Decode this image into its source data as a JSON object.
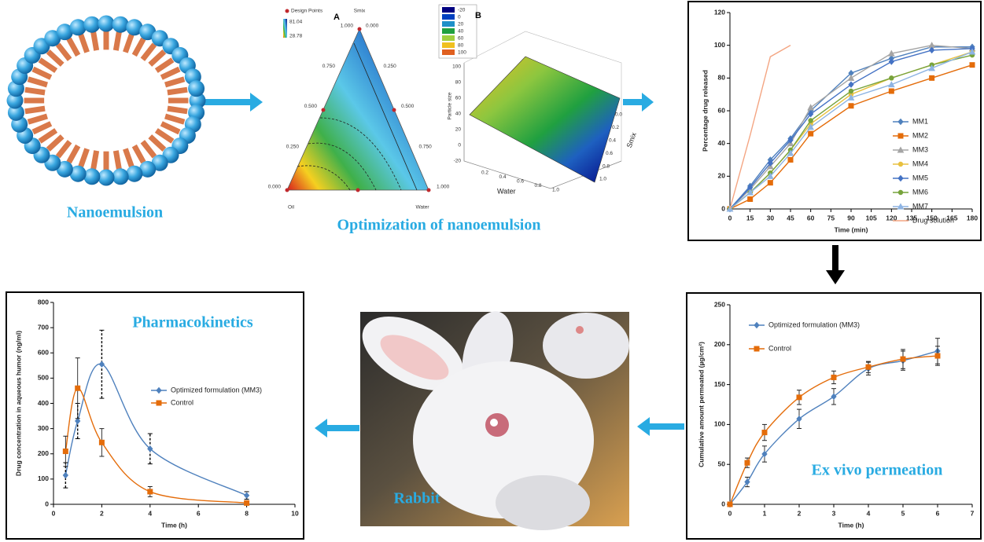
{
  "captions": {
    "nanoemulsion": "Nanoemulsion",
    "optimization": "Optimization of nanoemulsion",
    "rabbit": "Rabbit"
  },
  "figures": {
    "ternary": {
      "panel": "A",
      "legend_title": "Design Points",
      "high": "81.04",
      "low": "28.78",
      "top": "Smix",
      "left": "Oil",
      "right": "Water",
      "ticks": [
        "1.000",
        "0.750",
        "0.500",
        "0.250",
        "0.000"
      ]
    },
    "surface": {
      "panel": "B",
      "x_label": "Water",
      "y_label": "Smix",
      "z_label": "Particle size",
      "x_ticks": [
        "0.2",
        "0.4",
        "0.6",
        "0.8",
        "1.0"
      ],
      "y_ticks": [
        "0.0",
        "0.2",
        "0.4",
        "0.6",
        "0.8",
        "1.0"
      ],
      "z_ticks": [
        "100",
        "80",
        "60",
        "40",
        "20",
        "0",
        "-20"
      ],
      "legend": [
        {
          "label": "-20",
          "color": "#000080"
        },
        {
          "label": "0",
          "color": "#0040c0"
        },
        {
          "label": "20",
          "color": "#1e90c8"
        },
        {
          "label": "40",
          "color": "#20a040"
        },
        {
          "label": "60",
          "color": "#a0d040"
        },
        {
          "label": "80",
          "color": "#f0c020"
        },
        {
          "label": "100",
          "color": "#e06020"
        }
      ]
    }
  },
  "chart_data": [
    {
      "type": "line",
      "smooth": false,
      "xlabel": "Time (min)",
      "ylabel": "Percentage drug released",
      "x": [
        0,
        15,
        30,
        45,
        60,
        90,
        120,
        150,
        180
      ],
      "xlim": [
        0,
        180
      ],
      "xticks": [
        0,
        15,
        30,
        45,
        60,
        75,
        90,
        105,
        120,
        135,
        150,
        165,
        180
      ],
      "ylim": [
        0,
        120
      ],
      "yticks": [
        0,
        20,
        40,
        60,
        80,
        100,
        120
      ],
      "series": [
        {
          "name": "MM1",
          "color": "#4f81bd",
          "marker": "diamond",
          "values": [
            0,
            14,
            30,
            43,
            60,
            83,
            92,
            99,
            99
          ]
        },
        {
          "name": "MM2",
          "color": "#e46c0a",
          "marker": "square",
          "values": [
            0,
            6,
            16,
            30,
            46,
            63,
            72,
            80,
            88
          ]
        },
        {
          "name": "MM3",
          "color": "#a5a5a5",
          "marker": "triangle",
          "values": [
            0,
            12,
            26,
            40,
            62,
            80,
            95,
            100,
            98
          ]
        },
        {
          "name": "MM4",
          "color": "#e8c140",
          "marker": "circle",
          "values": [
            0,
            10,
            22,
            36,
            52,
            70,
            80,
            88,
            96
          ]
        },
        {
          "name": "MM5",
          "color": "#4472c4",
          "marker": "diamond",
          "values": [
            0,
            13,
            28,
            42,
            58,
            76,
            90,
            97,
            98
          ]
        },
        {
          "name": "MM6",
          "color": "#77a33c",
          "marker": "circle",
          "values": [
            0,
            10,
            22,
            36,
            54,
            72,
            80,
            88,
            94
          ]
        },
        {
          "name": "MM7",
          "color": "#8eb4e3",
          "marker": "triangle",
          "values": [
            0,
            10,
            20,
            34,
            50,
            68,
            76,
            86,
            96
          ]
        },
        {
          "name": "Drug solution",
          "color": "#f4a582",
          "marker": "none",
          "values": [
            0,
            45,
            93,
            100,
            null,
            null,
            null,
            null,
            null
          ]
        }
      ]
    },
    {
      "type": "line",
      "smooth": true,
      "xlabel": "Time (h)",
      "ylabel": "Cumulative amount permeated (µg/cm²)",
      "annotation": "Ex vivo permeation",
      "x": [
        0,
        0.5,
        1,
        2,
        3,
        4,
        5,
        6
      ],
      "xlim": [
        0,
        7
      ],
      "xticks": [
        0,
        1,
        2,
        3,
        4,
        5,
        6,
        7
      ],
      "ylim": [
        0,
        250
      ],
      "yticks": [
        0,
        50,
        100,
        150,
        200,
        250
      ],
      "series": [
        {
          "name": "Optimized formulation (MM3)",
          "color": "#4f81bd",
          "marker": "diamond",
          "values": [
            0,
            28,
            63,
            107,
            135,
            170,
            180,
            192
          ],
          "errors": [
            0,
            6,
            10,
            12,
            10,
            8,
            12,
            16
          ]
        },
        {
          "name": "Control",
          "color": "#e46c0a",
          "marker": "square",
          "values": [
            0,
            52,
            90,
            134,
            159,
            172,
            182,
            186
          ],
          "errors": [
            0,
            6,
            10,
            9,
            8,
            7,
            12,
            12
          ]
        }
      ]
    },
    {
      "type": "line",
      "smooth": true,
      "xlabel": "Time (h)",
      "ylabel": "Drug concentration in aqueous humor (ng/ml)",
      "annotation": "Pharmacokinetics",
      "x": [
        0.5,
        1,
        2,
        4,
        8
      ],
      "xlim": [
        0,
        10
      ],
      "xticks": [
        0,
        2,
        4,
        6,
        8,
        10
      ],
      "ylim": [
        0,
        800
      ],
      "yticks": [
        0,
        100,
        200,
        300,
        400,
        500,
        600,
        700,
        800
      ],
      "series": [
        {
          "name": "Optimized formulation (MM3)",
          "color": "#4f81bd",
          "marker": "diamond",
          "error_dash": true,
          "values": [
            115,
            330,
            555,
            220,
            35
          ],
          "errors": [
            50,
            70,
            135,
            60,
            15
          ]
        },
        {
          "name": "Control",
          "color": "#e46c0a",
          "marker": "square",
          "error_dash": false,
          "values": [
            210,
            460,
            245,
            50,
            5
          ],
          "errors": [
            60,
            120,
            55,
            20,
            5
          ]
        }
      ]
    }
  ]
}
